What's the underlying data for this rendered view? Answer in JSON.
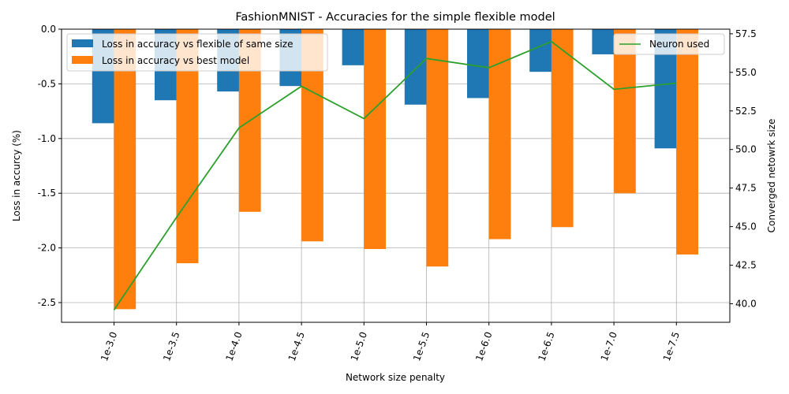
{
  "chart_data": {
    "type": "bar",
    "title": "FashionMNIST - Accuracies for the simple flexible model",
    "xlabel": "Network size penalty",
    "ylabel": "Loss in accurcy (%)",
    "y2label": "Converged netowrk size",
    "categories": [
      "1e-3.0",
      "1e-3.5",
      "1e-4.0",
      "1e-4.5",
      "1e-5.0",
      "1e-5.5",
      "1e-6.0",
      "1e-6.5",
      "1e-7.0",
      "1e-7.5"
    ],
    "ylim": [
      -2.68,
      0.0
    ],
    "y2lim": [
      38.8,
      57.8
    ],
    "yticks": [
      "0.0",
      "-0.5",
      "-1.0",
      "-1.5",
      "-2.0",
      "-2.5"
    ],
    "y2ticks": [
      "40.0",
      "42.5",
      "45.0",
      "47.5",
      "50.0",
      "52.5",
      "55.0",
      "57.5"
    ],
    "grid": true,
    "series": [
      {
        "name": "Loss in accuracy vs flexible of same size",
        "kind": "bar",
        "axis": "left",
        "color": "#1f77b4",
        "values": [
          -0.86,
          -0.65,
          -0.57,
          -0.52,
          -0.33,
          -0.69,
          -0.63,
          -0.39,
          -0.23,
          -1.09
        ]
      },
      {
        "name": "Loss in accuracy vs best model",
        "kind": "bar",
        "axis": "left",
        "color": "#ff7f0e",
        "values": [
          -2.56,
          -2.14,
          -1.67,
          -1.94,
          -2.01,
          -2.17,
          -1.92,
          -1.81,
          -1.5,
          -2.06
        ]
      },
      {
        "name": "Neuron used",
        "kind": "line",
        "axis": "right",
        "color": "#2ca02c",
        "values": [
          39.6,
          45.6,
          51.4,
          54.1,
          52.0,
          55.9,
          55.3,
          57.0,
          53.9,
          54.3
        ]
      }
    ],
    "legend": {
      "left_placement": "top-left",
      "right_placement": "top-right"
    }
  }
}
